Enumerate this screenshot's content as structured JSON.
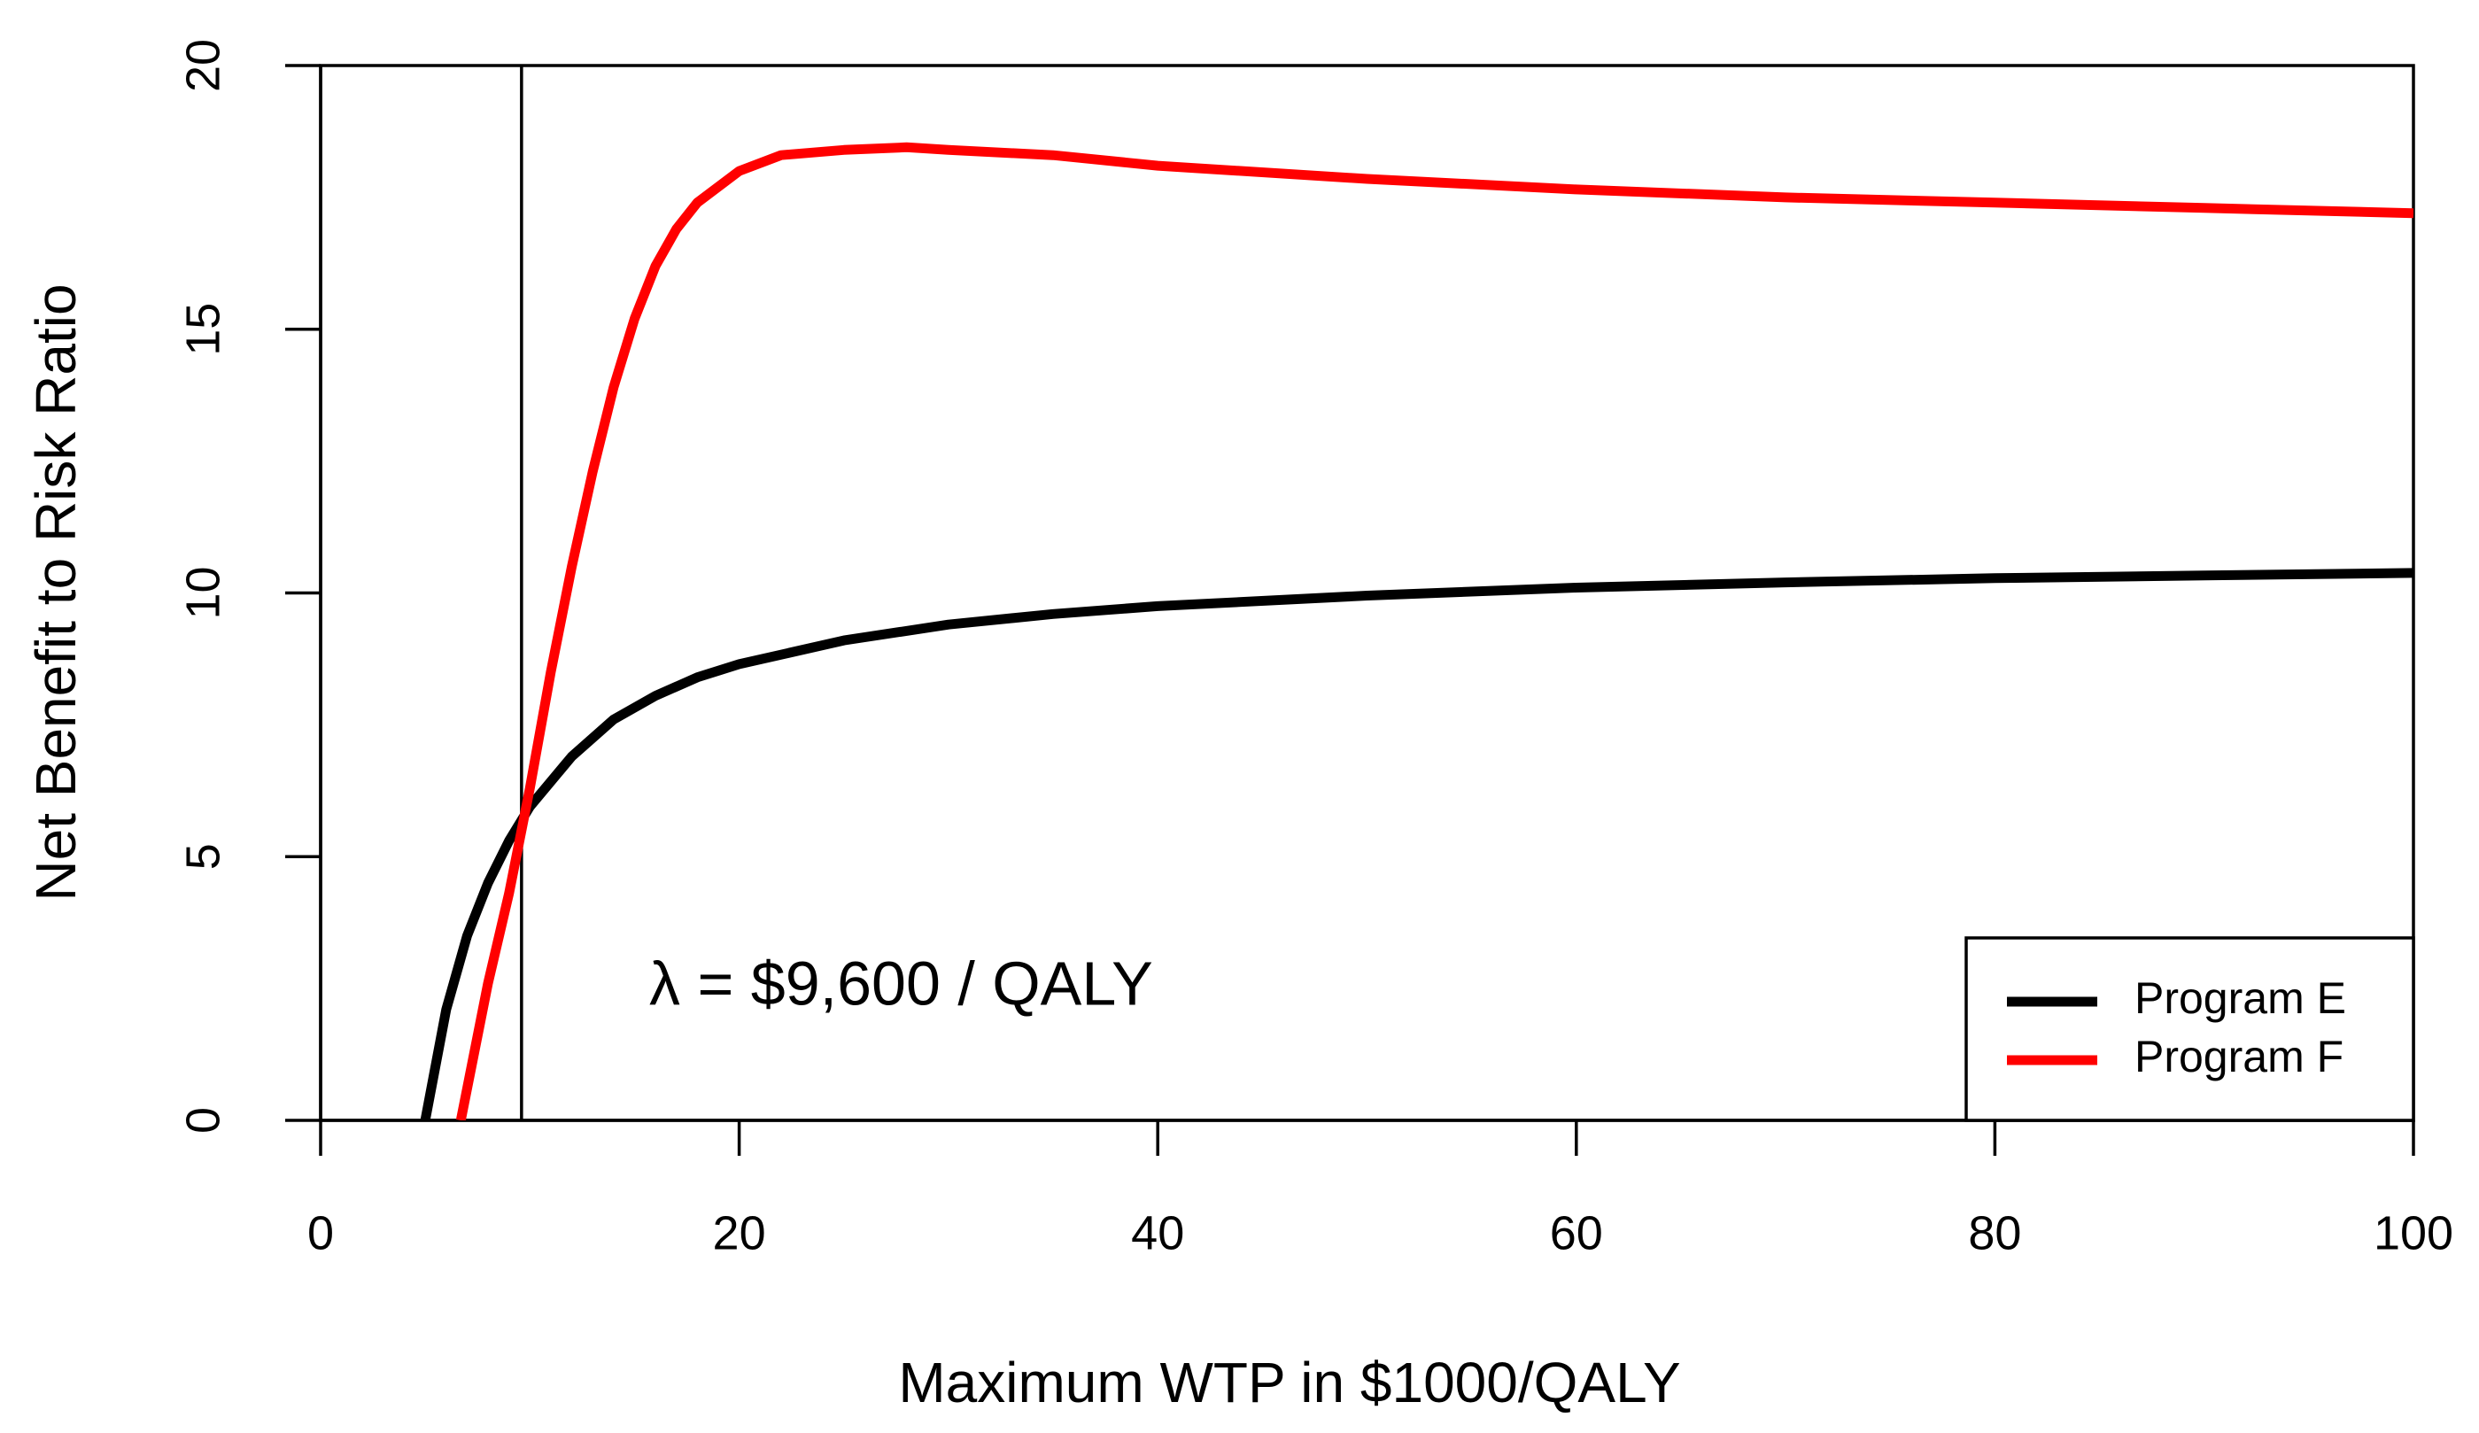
{
  "chart_data": {
    "type": "line",
    "xlabel": "Maximum WTP in $1000/QALY",
    "ylabel": "Net Benefit to Risk Ratio",
    "annotation": "λ = $9,600 / QALY",
    "vline": 9.6,
    "xlim": [
      0,
      100
    ],
    "xticks": [
      0,
      20,
      40,
      60,
      80,
      100
    ],
    "ylim": [
      0,
      20
    ],
    "yticks": [
      0,
      5,
      10,
      15,
      20
    ],
    "legend": "bottomright",
    "series": [
      {
        "name": "Program E",
        "color": "#000000",
        "x": [
          5,
          6,
          7,
          8,
          9,
          10,
          12,
          14,
          16,
          18,
          20,
          25,
          30,
          35,
          40,
          50,
          60,
          70,
          80,
          90,
          100
        ],
        "values": [
          0,
          2.1,
          3.5,
          4.5,
          5.3,
          5.95,
          6.9,
          7.6,
          8.05,
          8.4,
          8.65,
          9.1,
          9.4,
          9.6,
          9.75,
          9.95,
          10.1,
          10.2,
          10.28,
          10.33,
          10.38
        ]
      },
      {
        "name": "Program F",
        "color": "#ff0000",
        "x": [
          6.7,
          8,
          9,
          10,
          11,
          12,
          13,
          14,
          15,
          16,
          17,
          18,
          20,
          22,
          25,
          28,
          30,
          35,
          40,
          50,
          60,
          70,
          80,
          90,
          100
        ],
        "values": [
          0,
          2.6,
          4.3,
          6.3,
          8.5,
          10.5,
          12.3,
          13.9,
          15.2,
          16.2,
          16.9,
          17.4,
          18.0,
          18.3,
          18.4,
          18.45,
          18.4,
          18.3,
          18.1,
          17.85,
          17.65,
          17.5,
          17.4,
          17.3,
          17.2
        ]
      }
    ]
  }
}
